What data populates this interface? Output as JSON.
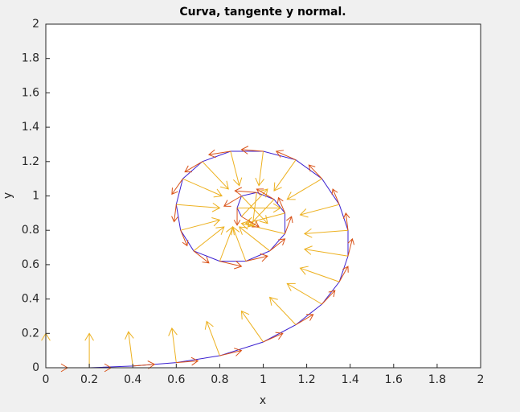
{
  "chart_data": {
    "type": "quiver",
    "title": "Curva, tangente y normal.",
    "xlabel": "x",
    "ylabel": "y",
    "xlim": [
      0,
      2
    ],
    "ylim": [
      0,
      2
    ],
    "xticks": [
      0,
      0.2,
      0.4,
      0.6,
      0.8,
      1,
      1.2,
      1.4,
      1.6,
      1.8,
      2
    ],
    "yticks": [
      0,
      0.2,
      0.4,
      0.6,
      0.8,
      1,
      1.2,
      1.4,
      1.6,
      1.8,
      2
    ],
    "curve": {
      "color": "#3a1fd0",
      "x": [
        0,
        0.2,
        0.4,
        0.6,
        0.8,
        1.0,
        1.15,
        1.27,
        1.35,
        1.39,
        1.39,
        1.35,
        1.27,
        1.15,
        1.0,
        0.85,
        0.72,
        0.63,
        0.6,
        0.62,
        0.68,
        0.8,
        0.92,
        1.03,
        1.1,
        1.1,
        1.05,
        0.97,
        0.9,
        0.88,
        0.9
      ],
      "y": [
        0,
        0,
        0.01,
        0.03,
        0.07,
        0.15,
        0.25,
        0.37,
        0.5,
        0.65,
        0.8,
        0.95,
        1.1,
        1.21,
        1.26,
        1.26,
        1.2,
        1.1,
        0.95,
        0.8,
        0.68,
        0.62,
        0.62,
        0.68,
        0.78,
        0.9,
        0.98,
        1.02,
        1.0,
        0.93,
        0.88
      ]
    },
    "tangent": {
      "color": "#d95319",
      "u": [
        0.1,
        0.1,
        0.1,
        0.1,
        0.1,
        0.09,
        0.08,
        0.06,
        0.04,
        0.02,
        -0.01,
        -0.03,
        -0.06,
        -0.09,
        -0.1,
        -0.1,
        -0.08,
        -0.05,
        -0.01,
        0.03,
        0.07,
        0.1,
        0.1,
        0.07,
        0.03,
        -0.03,
        -0.08,
        -0.1,
        -0.08,
        0,
        0.08
      ],
      "v": [
        0,
        0,
        0.01,
        0.01,
        0.03,
        0.05,
        0.06,
        0.08,
        0.09,
        0.1,
        0.1,
        0.09,
        0.08,
        0.05,
        0.01,
        -0.02,
        -0.06,
        -0.09,
        -0.1,
        -0.09,
        -0.07,
        -0.03,
        0.03,
        0.07,
        0.1,
        0.09,
        0.06,
        0.01,
        -0.06,
        -0.1,
        -0.06
      ]
    },
    "normal": {
      "color": "#edb120",
      "u": [
        0,
        0,
        -0.02,
        -0.02,
        -0.06,
        -0.1,
        -0.12,
        -0.16,
        -0.18,
        -0.2,
        -0.2,
        -0.18,
        -0.16,
        -0.1,
        -0.02,
        0.04,
        0.12,
        0.18,
        0.2,
        0.18,
        0.14,
        0.06,
        -0.06,
        -0.14,
        -0.2,
        -0.18,
        -0.12,
        -0.02,
        0.12,
        0.2,
        0.12
      ],
      "v": [
        0.2,
        0.2,
        0.2,
        0.2,
        0.2,
        0.18,
        0.16,
        0.12,
        0.08,
        0.04,
        -0.02,
        -0.06,
        -0.12,
        -0.18,
        -0.2,
        -0.2,
        -0.16,
        -0.1,
        -0.02,
        0.06,
        0.14,
        0.2,
        0.2,
        0.14,
        0.06,
        -0.06,
        -0.16,
        -0.2,
        -0.16,
        0,
        0.16
      ]
    }
  }
}
